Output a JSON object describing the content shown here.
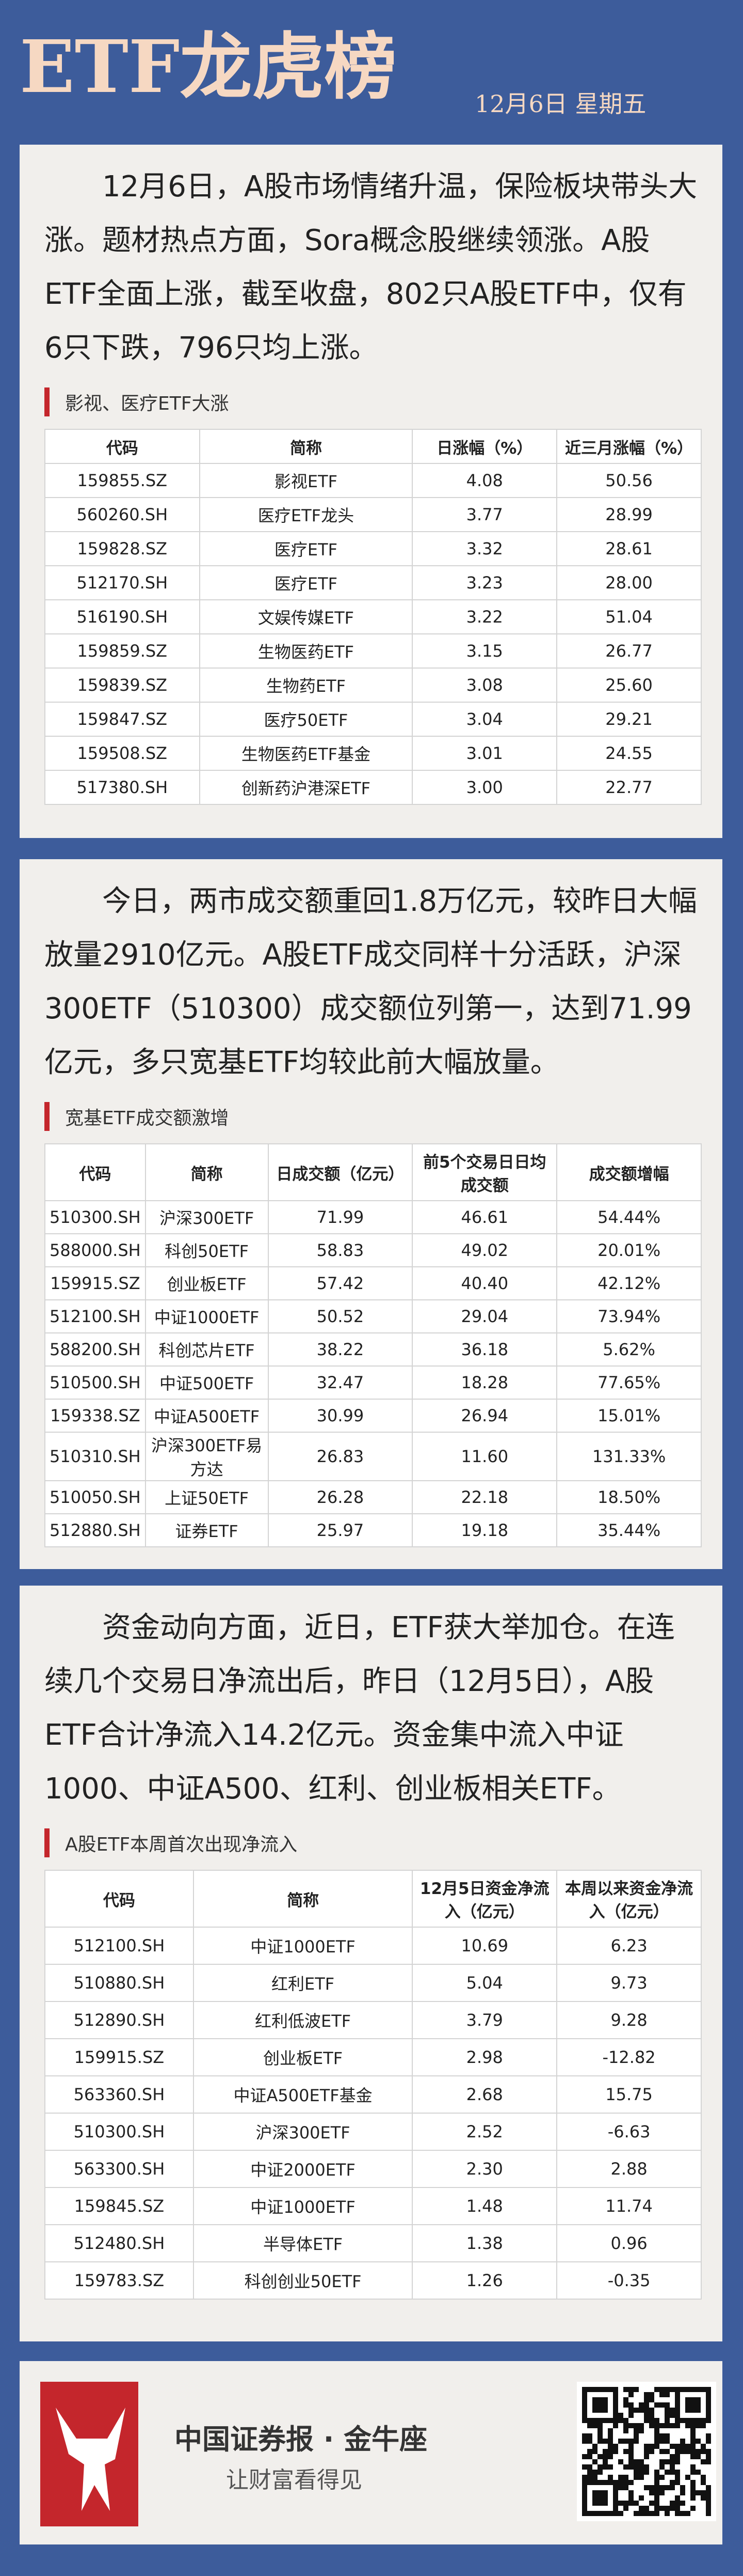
{
  "header": {
    "title": "ETF龙虎榜",
    "date": "12月6日 星期五"
  },
  "sections": [
    {
      "paragraph": "12月6日，A股市场情绪升温，保险板块带头大涨。题材热点方面，Sora概念股继续领涨。A股ETF全面上涨，截至收盘，802只A股ETF中，仅有6只下跌，796只均上涨。",
      "subheading": "影视、医疗ETF大涨",
      "table": {
        "columns": [
          "代码",
          "简称",
          "日涨幅（%）",
          "近三月涨幅（%）"
        ],
        "rows": [
          [
            "159855.SZ",
            "影视ETF",
            "4.08",
            "50.56"
          ],
          [
            "560260.SH",
            "医疗ETF龙头",
            "3.77",
            "28.99"
          ],
          [
            "159828.SZ",
            "医疗ETF",
            "3.32",
            "28.61"
          ],
          [
            "512170.SH",
            "医疗ETF",
            "3.23",
            "28.00"
          ],
          [
            "516190.SH",
            "文娱传媒ETF",
            "3.22",
            "51.04"
          ],
          [
            "159859.SZ",
            "生物医药ETF",
            "3.15",
            "26.77"
          ],
          [
            "159839.SZ",
            "生物药ETF",
            "3.08",
            "25.60"
          ],
          [
            "159847.SZ",
            "医疗50ETF",
            "3.04",
            "29.21"
          ],
          [
            "159508.SZ",
            "生物医药ETF基金",
            "3.01",
            "24.55"
          ],
          [
            "517380.SH",
            "创新药沪港深ETF",
            "3.00",
            "22.77"
          ]
        ]
      }
    },
    {
      "paragraph": "今日，两市成交额重回1.8万亿元，较昨日大幅放量2910亿元。A股ETF成交同样十分活跃，沪深300ETF（510300）成交额位列第一，达到71.99亿元，多只宽基ETF均较此前大幅放量。",
      "subheading": "宽基ETF成交额激增",
      "table": {
        "columns": [
          "代码",
          "简称",
          "日成交额（亿元）",
          "前5个交易日日均成交额",
          "成交额增幅"
        ],
        "rows": [
          [
            "510300.SH",
            "沪深300ETF",
            "71.99",
            "46.61",
            "54.44%"
          ],
          [
            "588000.SH",
            "科创50ETF",
            "58.83",
            "49.02",
            "20.01%"
          ],
          [
            "159915.SZ",
            "创业板ETF",
            "57.42",
            "40.40",
            "42.12%"
          ],
          [
            "512100.SH",
            "中证1000ETF",
            "50.52",
            "29.04",
            "73.94%"
          ],
          [
            "588200.SH",
            "科创芯片ETF",
            "38.22",
            "36.18",
            "5.62%"
          ],
          [
            "510500.SH",
            "中证500ETF",
            "32.47",
            "18.28",
            "77.65%"
          ],
          [
            "159338.SZ",
            "中证A500ETF",
            "30.99",
            "26.94",
            "15.01%"
          ],
          [
            "510310.SH",
            "沪深300ETF易方达",
            "26.83",
            "11.60",
            "131.33%"
          ],
          [
            "510050.SH",
            "上证50ETF",
            "26.28",
            "22.18",
            "18.50%"
          ],
          [
            "512880.SH",
            "证券ETF",
            "25.97",
            "19.18",
            "35.44%"
          ]
        ]
      }
    },
    {
      "paragraph": "资金动向方面，近日，ETF获大举加仓。在连续几个交易日净流出后，昨日（12月5日），A股ETF合计净流入14.2亿元。资金集中流入中证1000、中证A500、红利、创业板相关ETF。",
      "subheading": "A股ETF本周首次出现净流入",
      "table": {
        "columns": [
          "代码",
          "简称",
          "12月5日资金净流入（亿元）",
          "本周以来资金净流入（亿元）"
        ],
        "rows": [
          [
            "512100.SH",
            "中证1000ETF",
            "10.69",
            "6.23"
          ],
          [
            "510880.SH",
            "红利ETF",
            "5.04",
            "9.73"
          ],
          [
            "512890.SH",
            "红利低波ETF",
            "3.79",
            "9.28"
          ],
          [
            "159915.SZ",
            "创业板ETF",
            "2.98",
            "-12.82"
          ],
          [
            "563360.SH",
            "中证A500ETF基金",
            "2.68",
            "15.75"
          ],
          [
            "510300.SH",
            "沪深300ETF",
            "2.52",
            "-6.63"
          ],
          [
            "563300.SH",
            "中证2000ETF",
            "2.30",
            "2.88"
          ],
          [
            "159845.SZ",
            "中证1000ETF",
            "1.48",
            "11.74"
          ],
          [
            "512480.SH",
            "半导体ETF",
            "1.38",
            "0.96"
          ],
          [
            "159783.SZ",
            "科创创业50ETF",
            "1.26",
            "-0.35"
          ]
        ]
      }
    }
  ],
  "footer": {
    "brand": "中国证券报 · 金牛座",
    "slogan": "让财富看得见"
  }
}
